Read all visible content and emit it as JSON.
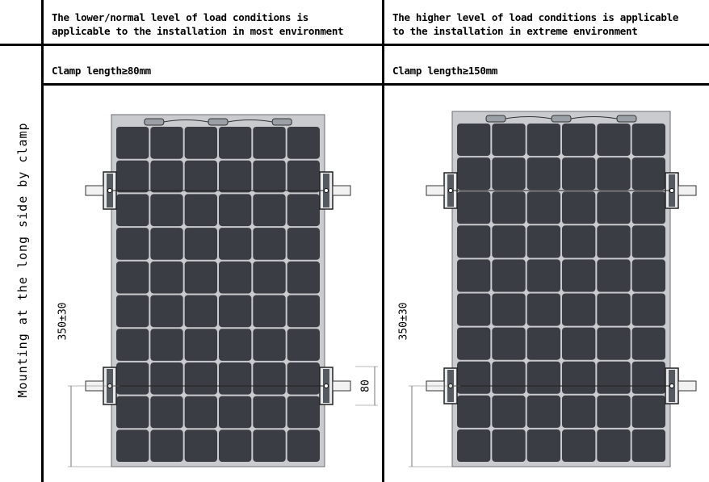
{
  "header": {
    "left_line1": "The lower/normal level of load conditions is",
    "left_line2": "applicable to the installation in most environment",
    "right_line1": "The higher level of load conditions is applicable",
    "right_line2": "to the installation in extreme environment"
  },
  "clamp": {
    "left": "Clamp length≥80mm",
    "right": "Clamp length≥150mm"
  },
  "row_label": "Mounting at the long side by clamp",
  "dimensions": {
    "left_vertical": "350±30",
    "left_clamp": "80",
    "right_vertical": "350±30"
  },
  "colors": {
    "cell": "#3a3d44",
    "frame": "#c9cbcf",
    "clamp": "#555a60"
  },
  "icons": [
    "junction-box-icon",
    "clamp-icon"
  ]
}
